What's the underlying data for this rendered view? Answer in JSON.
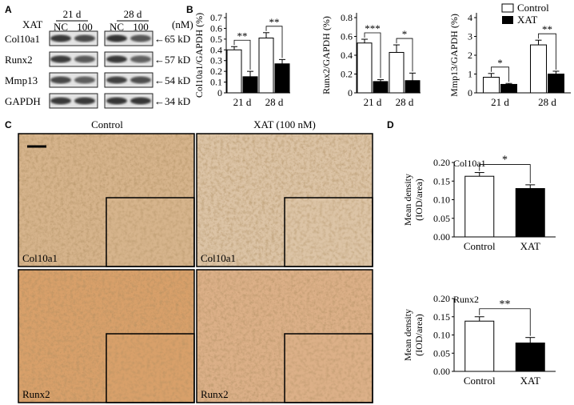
{
  "panels": {
    "a": "A",
    "b": "B",
    "c": "C",
    "d": "D"
  },
  "blot": {
    "xat_label": "XAT",
    "unit": "(nM)",
    "groups": [
      {
        "time": "21 d",
        "lanes": [
          "NC",
          "100"
        ]
      },
      {
        "time": "28 d",
        "lanes": [
          "NC",
          "100"
        ]
      }
    ],
    "rows": [
      {
        "protein": "Col10a1",
        "size": "65 kD",
        "i": [
          0.9,
          0.78,
          0.95,
          0.7
        ]
      },
      {
        "protein": "Runx2",
        "size": "57 kD",
        "i": [
          0.88,
          0.68,
          0.9,
          0.62
        ]
      },
      {
        "protein": "Mmp13",
        "size": "54 kD",
        "i": [
          0.8,
          0.65,
          0.85,
          0.75
        ]
      },
      {
        "protein": "GAPDH",
        "size": "34 kD",
        "i": [
          0.9,
          0.9,
          0.92,
          0.92
        ]
      }
    ],
    "arrow_glyph": "←"
  },
  "legend": {
    "control": "Control",
    "xat": "XAT"
  },
  "chart_data": [
    {
      "type": "bar",
      "ylabel": "Col10a1/GAPDH (%)",
      "categories": [
        "21 d",
        "28 d"
      ],
      "ylim": [
        0,
        0.7
      ],
      "yticks": [
        0,
        0.1,
        0.2,
        0.3,
        0.4,
        0.5,
        0.6,
        0.7
      ],
      "series": [
        {
          "name": "Control",
          "values": [
            0.4,
            0.51
          ],
          "errors": [
            0.03,
            0.05
          ]
        },
        {
          "name": "XAT",
          "values": [
            0.15,
            0.27
          ],
          "errors": [
            0.05,
            0.04
          ]
        }
      ],
      "sig": [
        "**",
        "**"
      ]
    },
    {
      "type": "bar",
      "ylabel": "Runx2/GAPDH (%)",
      "categories": [
        "21 d",
        "28 d"
      ],
      "ylim": [
        0,
        0.8
      ],
      "yticks": [
        0,
        0.2,
        0.4,
        0.6,
        0.8
      ],
      "series": [
        {
          "name": "Control",
          "values": [
            0.53,
            0.43
          ],
          "errors": [
            0.04,
            0.08
          ]
        },
        {
          "name": "XAT",
          "values": [
            0.12,
            0.13
          ],
          "errors": [
            0.02,
            0.08
          ]
        }
      ],
      "sig": [
        "***",
        "*"
      ]
    },
    {
      "type": "bar",
      "ylabel": "Mmp13/GAPDH (%)",
      "categories": [
        "21 d",
        "28 d"
      ],
      "ylim": [
        0,
        4
      ],
      "yticks": [
        0,
        1,
        2,
        3,
        4
      ],
      "series": [
        {
          "name": "Control",
          "values": [
            0.83,
            2.55
          ],
          "errors": [
            0.2,
            0.25
          ]
        },
        {
          "name": "XAT",
          "values": [
            0.45,
            1.0
          ],
          "errors": [
            0.05,
            0.15
          ]
        }
      ],
      "sig": [
        "*",
        "**"
      ]
    },
    {
      "type": "bar",
      "title": "Col10a1",
      "ylabel": "Mean density (IOD/area)",
      "categories": [
        "Control",
        "XAT"
      ],
      "ylim": [
        0,
        0.2
      ],
      "yticks": [
        "0.00",
        "0.05",
        "0.10",
        "0.15",
        "0.20"
      ],
      "values": [
        0.163,
        0.13
      ],
      "errors": [
        0.01,
        0.01
      ],
      "sig": "*"
    },
    {
      "type": "bar",
      "title": "Runx2",
      "ylabel": "Mean density (IOD/area)",
      "categories": [
        "Control",
        "XAT"
      ],
      "ylim": [
        0,
        0.2
      ],
      "yticks": [
        "0.00",
        "0.05",
        "0.10",
        "0.15",
        "0.20"
      ],
      "values": [
        0.138,
        0.078
      ],
      "errors": [
        0.012,
        0.015
      ],
      "sig": "**"
    }
  ],
  "histology": {
    "col_titles": [
      "Control",
      "XAT (100 nM)"
    ],
    "row_labels": [
      "Col10a1",
      "Runx2"
    ],
    "colors": {
      "col10a1_ctrl": "#d6b48c",
      "col10a1_xat": "#dcc4a6",
      "runx2_ctrl": "#d8a06a",
      "runx2_xat": "#dcb088"
    }
  }
}
